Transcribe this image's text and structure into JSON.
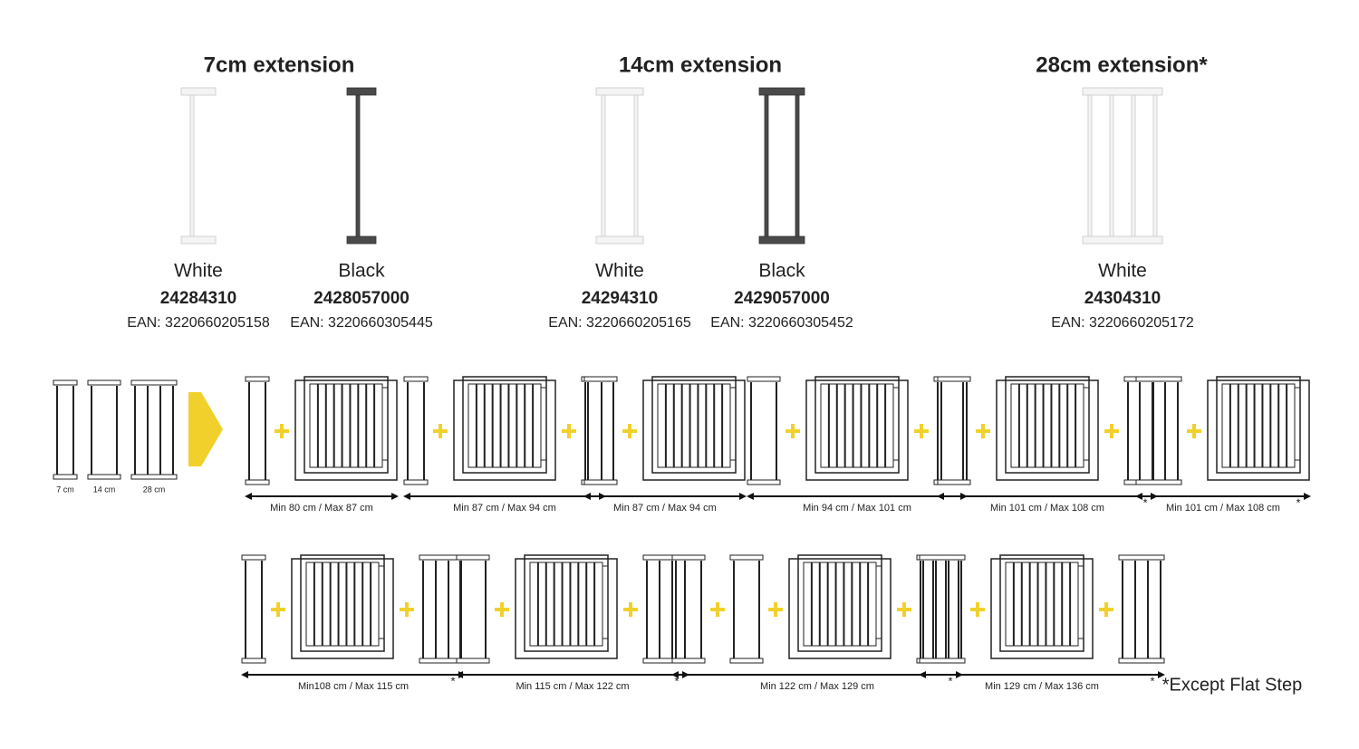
{
  "groups": [
    {
      "title": "7cm extension",
      "items": [
        {
          "color": "White",
          "code": "24284310",
          "ean": "EAN: 3220660205158"
        },
        {
          "color": "Black",
          "code": "2428057000",
          "ean": "EAN: 3220660305445"
        }
      ]
    },
    {
      "title": "14cm extension",
      "items": [
        {
          "color": "White",
          "code": "24294310",
          "ean": "EAN: 3220660205165"
        },
        {
          "color": "Black",
          "code": "2429057000",
          "ean": "EAN: 3220660305452"
        }
      ]
    },
    {
      "title": "28cm extension*",
      "items": [
        {
          "color": "White",
          "code": "24304310",
          "ean": "EAN: 3220660205172"
        }
      ]
    }
  ],
  "legend": [
    "7 cm",
    "14 cm",
    "28 cm"
  ],
  "combinations": [
    {
      "label": "Min 80 cm / Max 87 cm"
    },
    {
      "label": "Min 87 cm / Max 94 cm"
    },
    {
      "label": "Min 87 cm / Max 94 cm"
    },
    {
      "label": "Min 94 cm / Max 101 cm"
    },
    {
      "label": "Min 101 cm / Max 108 cm",
      "note": "*"
    },
    {
      "label": "Min 101 cm / Max 108 cm",
      "note": "*"
    },
    {
      "label": "Min108 cm / Max 115 cm",
      "note": "*"
    },
    {
      "label": "Min 115 cm / Max 122 cm",
      "note": "*"
    },
    {
      "label": "Min 122 cm / Max 129 cm",
      "note": "*"
    },
    {
      "label": "Min 129 cm / Max 136 cm",
      "note": "*"
    }
  ],
  "footnote": "*Except Flat Step"
}
